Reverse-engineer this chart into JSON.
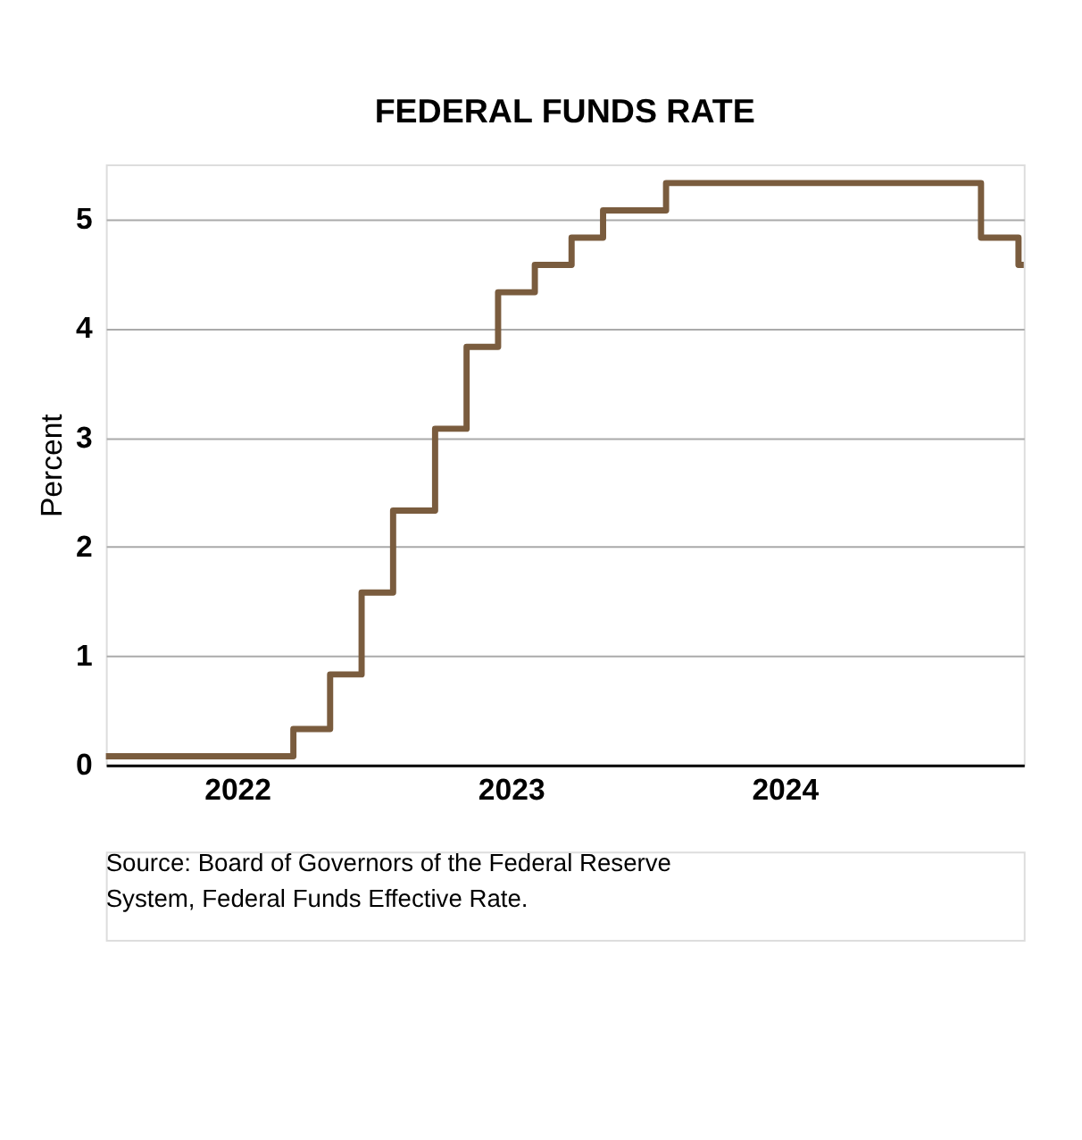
{
  "chart_data": {
    "type": "step",
    "title": "FEDERAL FUNDS RATE",
    "ylabel": "Percent",
    "x": [
      "2021-07-10",
      "2022-03-17",
      "2022-05-05",
      "2022-06-16",
      "2022-07-28",
      "2022-09-22",
      "2022-11-03",
      "2022-12-15",
      "2023-02-02",
      "2023-03-23",
      "2023-05-04",
      "2023-07-27",
      "2024-09-19",
      "2024-11-08",
      "2024-11-15"
    ],
    "series": [
      {
        "color": "#7a5c3e",
        "values": [
          0.08,
          0.33,
          0.83,
          1.58,
          2.33,
          3.08,
          3.83,
          4.33,
          4.58,
          4.83,
          5.08,
          5.33,
          4.83,
          4.58,
          4.58
        ]
      }
    ],
    "xlim": [
      "2021-07-10",
      "2024-11-15"
    ],
    "xticks": [
      "2022",
      "2023",
      "2024"
    ],
    "ylim": [
      0,
      5.5
    ],
    "yticks": [
      0,
      1,
      2,
      3,
      4,
      5
    ],
    "grid": "y",
    "legend": false,
    "annotations": [
      "Source: Board of Governors of the Federal Reserve System, Federal Funds Effective Rate."
    ]
  }
}
